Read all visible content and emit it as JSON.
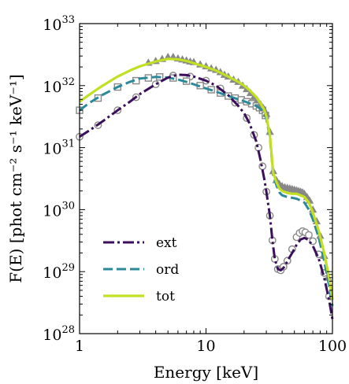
{
  "chart_data": {
    "type": "line",
    "xlabel": "Energy [keV]",
    "ylabel": "F(E) [phot cm⁻² s⁻¹ keV⁻¹]",
    "x_scale": "log",
    "y_scale": "log",
    "xlim": [
      1,
      100
    ],
    "ylim": [
      1e+28,
      1e+33
    ],
    "x_ticks": [
      1,
      10,
      100
    ],
    "x_tick_labels": [
      "1",
      "10",
      "100"
    ],
    "y_ticks": [
      1e+28,
      1e+29,
      1e+30,
      1e+31,
      1e+32,
      1e+33
    ],
    "y_tick_labels": [
      {
        "base": "10",
        "exp": "28"
      },
      {
        "base": "10",
        "exp": "29"
      },
      {
        "base": "10",
        "exp": "30"
      },
      {
        "base": "10",
        "exp": "31"
      },
      {
        "base": "10",
        "exp": "32"
      },
      {
        "base": "10",
        "exp": "33"
      }
    ],
    "grid": false,
    "legend_position": "lower-left",
    "series": [
      {
        "name": "ext",
        "color": "#3b0f5c",
        "style": "dashdot",
        "marker": "circle",
        "x": [
          1.0,
          1.2,
          1.5,
          2.0,
          2.5,
          3.0,
          4.0,
          5.0,
          6.0,
          7.0,
          8.0,
          10.0,
          12.0,
          15.0,
          18.0,
          20.0,
          22.0,
          25.0,
          27.0,
          29.0,
          30.0,
          32.0,
          33.5,
          35.0,
          37.0,
          39.0,
          41.0,
          43.0,
          45.0,
          48.0,
          52.0,
          56.0,
          60.0,
          64.0,
          70.0,
          78.0,
          86.0,
          94.0,
          100.0
        ],
        "y": [
          1.5e+31,
          1.9e+31,
          2.6e+31,
          4e+31,
          5.5e+31,
          7.3e+31,
          1.05e+32,
          1.35e+32,
          1.5e+32,
          1.48e+32,
          1.4e+32,
          1.2e+32,
          1e+32,
          7e+31,
          4.7e+31,
          3.6e+31,
          2.5e+31,
          1.25e+31,
          6.3e+30,
          3e+30,
          1.95e+30,
          8e+29,
          3.2e+29,
          1.6e+29,
          1.1e+29,
          1.05e+29,
          1.15e+29,
          1.35e+29,
          1.6e+29,
          2e+29,
          2.7e+29,
          3.3e+29,
          3.5e+29,
          3.3e+29,
          2.6e+29,
          1.6e+29,
          8e+28,
          3.5e+28,
          1.7e+28
        ]
      },
      {
        "name": "ord",
        "color": "#2a8a9a",
        "style": "dashed",
        "marker": "square",
        "x": [
          1.0,
          1.2,
          1.5,
          2.0,
          2.5,
          3.0,
          4.0,
          5.0,
          6.0,
          7.0,
          8.0,
          10.0,
          12.0,
          15.0,
          18.0,
          20.0,
          22.0,
          25.0,
          27.0,
          29.0,
          30.0,
          32.0,
          34.0,
          36.0,
          38.0,
          40.0,
          44.0,
          48.0,
          52.0,
          56.0,
          60.0,
          65.0,
          70.0,
          78.0,
          86.0,
          94.0,
          100.0
        ],
        "y": [
          4e+31,
          5.3e+31,
          7e+31,
          9.5e+31,
          1.15e+32,
          1.3e+32,
          1.38e+32,
          1.35e+32,
          1.25e+32,
          1.15e+32,
          1.05e+32,
          9e+31,
          8e+31,
          6.8e+31,
          6e+31,
          5.6e+31,
          5.2e+31,
          4.7e+31,
          4.2e+31,
          3.5e+31,
          2.9e+31,
          1.5e+31,
          3.6e+30,
          2.5e+30,
          1.9e+30,
          1.7e+30,
          1.6e+30,
          1.55e+30,
          1.5e+30,
          1.4e+30,
          1.3e+30,
          1e+30,
          7e+29,
          3.5e+29,
          1.5e+29,
          6e+28,
          2.8e+28
        ]
      },
      {
        "name": "tot",
        "color": "#c2df23",
        "style": "solid",
        "marker": "triangle",
        "x": [
          1.0,
          1.2,
          1.5,
          2.0,
          2.5,
          3.0,
          4.0,
          5.0,
          6.0,
          7.0,
          8.0,
          10.0,
          12.0,
          15.0,
          18.0,
          20.0,
          22.0,
          25.0,
          27.0,
          29.0,
          30.0,
          32.0,
          34.0,
          36.0,
          38.0,
          40.0,
          44.0,
          48.0,
          52.0,
          56.0,
          60.0,
          65.0,
          70.0,
          78.0,
          86.0,
          94.0,
          100.0
        ],
        "y": [
          5.5e+31,
          7.2e+31,
          9.8e+31,
          1.4e+32,
          1.75e+32,
          2.05e+32,
          2.45e+32,
          2.7e+32,
          2.65e+32,
          2.5e+32,
          2.3e+32,
          2e+32,
          1.75e+32,
          1.4e+32,
          1.15e+32,
          1e+32,
          8.5e+31,
          6.5e+31,
          5.2e+31,
          4e+31,
          3.2e+31,
          1.6e+31,
          3.9e+30,
          2.8e+30,
          2.2e+30,
          2e+30,
          1.85e+30,
          1.8e+30,
          1.8e+30,
          1.7e+30,
          1.6e+30,
          1.3e+30,
          9e+29,
          4.5e+29,
          2e+29,
          8e+28,
          3.5e+28
        ]
      }
    ],
    "marker_series": [
      {
        "name_ref": "ext",
        "marker": "circle",
        "color": "#888888",
        "x": [
          1.0,
          1.4,
          2.0,
          2.8,
          4.0,
          5.5,
          7.5,
          10.0,
          13.0,
          17.0,
          21.0,
          24.0,
          26.0,
          28.0,
          30.0,
          32.0,
          33.5,
          35.0,
          37.0,
          39.0,
          41.0,
          44.0,
          48.0,
          52.0,
          55.0,
          58.0,
          61.0,
          65.0,
          70.0,
          78.0,
          86.0,
          94.0
        ],
        "y": [
          1.5e+31,
          2.3e+31,
          4e+31,
          6.5e+31,
          1.05e+32,
          1.45e+32,
          1.4e+32,
          1.2e+32,
          9e+31,
          5.3e+31,
          3e+31,
          1.6e+31,
          1e+31,
          5e+30,
          1.95e+30,
          8e+29,
          3.2e+29,
          1.6e+29,
          1.1e+29,
          1.05e+29,
          1.2e+29,
          1.5e+29,
          2.3e+29,
          3.6e+29,
          4.2e+29,
          4.5e+29,
          4.3e+29,
          3.9e+29,
          3.1e+29,
          1.9e+29,
          9.5e+28,
          4e+28
        ]
      },
      {
        "name_ref": "ord",
        "marker": "square",
        "color": "#888888",
        "x": [
          1.0,
          1.4,
          2.0,
          2.8,
          3.5,
          4.3,
          5.5,
          7.0,
          9.0,
          11.0,
          13.0,
          15.0,
          17.0,
          19.0,
          21.0,
          23.0,
          25.0,
          26.5,
          28.0,
          29.5
        ],
        "y": [
          4e+31,
          6.3e+31,
          9.5e+31,
          1.2e+32,
          1.33e+32,
          1.38e+32,
          1.33e+32,
          1.18e+32,
          1e+32,
          8.6e+31,
          7.6e+31,
          6.8e+31,
          6.3e+31,
          5.9e+31,
          5.5e+31,
          5.1e+31,
          4.7e+31,
          4.4e+31,
          4e+31,
          3.3e+31
        ]
      },
      {
        "name_ref": "tot",
        "marker": "triangle",
        "color": "#888888",
        "x": [
          3.5,
          4.0,
          4.5,
          5.0,
          5.5,
          6.0,
          6.5,
          7.0,
          7.5,
          8.0,
          9.0,
          10.0,
          11.0,
          12.0,
          13.0,
          14.0,
          15.0,
          16.5,
          18.0,
          19.5,
          21.0,
          22.5,
          24.0,
          25.5,
          27.0,
          28.5,
          30.0,
          32.0,
          34.0,
          36.0,
          38.0,
          40.0,
          42.0,
          44.0,
          46.0,
          48.0,
          50.0,
          52.0,
          54.0,
          56.0,
          58.0,
          60.0,
          63.0,
          66.0,
          70.0,
          75.0,
          80.0,
          86.0,
          92.0
        ],
        "y": [
          2.35e+32,
          2.5e+32,
          2.7e+32,
          2.9e+32,
          2.9e+32,
          2.75e+32,
          2.65e+32,
          2.55e+32,
          2.45e+32,
          2.4e+32,
          2.2e+32,
          2.05e+32,
          1.9e+32,
          1.8e+32,
          1.65e+32,
          1.5e+32,
          1.4e+32,
          1.25e+32,
          1.15e+32,
          1e+32,
          8.8e+31,
          7.6e+31,
          6.6e+31,
          5.8e+31,
          5e+31,
          4.3e+31,
          3.5e+31,
          1.8e+31,
          4.2e+30,
          3e+30,
          2.6e+30,
          2.4e+30,
          2.3e+30,
          2.25e+30,
          2.2e+30,
          2.15e+30,
          2.1e+30,
          2.05e+30,
          2e+30,
          1.95e+30,
          1.9e+30,
          1.8e+30,
          1.6e+30,
          1.4e+30,
          1e+30,
          6.5e+29,
          3.8e+29,
          1.8e+29,
          8e+28
        ]
      }
    ],
    "legend": [
      {
        "label": "ext",
        "color": "#3b0f5c",
        "style": "dashdot"
      },
      {
        "label": "ord",
        "color": "#2a8a9a",
        "style": "dashed"
      },
      {
        "label": "tot",
        "color": "#c2df23",
        "style": "solid"
      }
    ]
  }
}
